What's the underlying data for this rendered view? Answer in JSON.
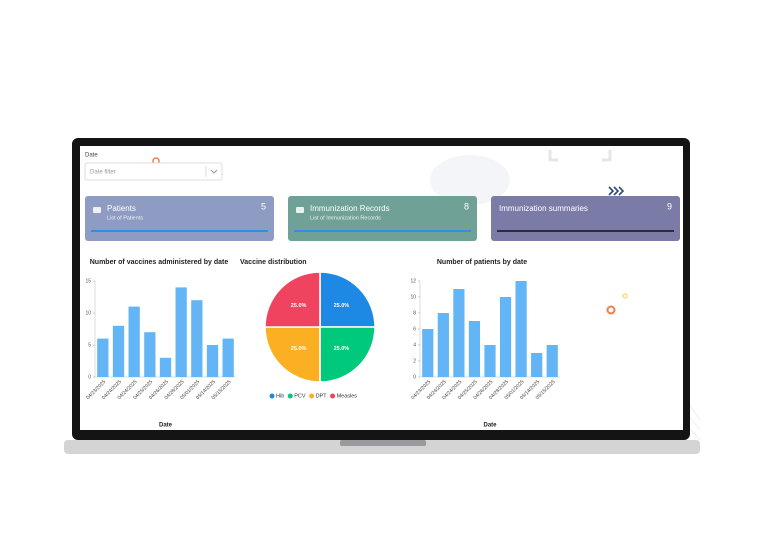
{
  "filter": {
    "label": "Date",
    "placeholder": "Date filter"
  },
  "cards": [
    {
      "title": "Patients",
      "subtitle": "List of Patients",
      "count": 5,
      "color": "#8e9bc2",
      "accent": "#2f8fe0"
    },
    {
      "title": "Immunization Records",
      "subtitle": "List of Immunization Records",
      "count": 8,
      "color": "#6fa196",
      "accent": "#2f8fe0"
    },
    {
      "title": "Immunization summaries",
      "count": 9,
      "color": "#7b7ba8",
      "accent": "#2c2c3a"
    }
  ],
  "charts": [
    {
      "type": "bar",
      "title": "Number of vaccines administered by date",
      "x_label": "Date",
      "categories": [
        "04/23/2025",
        "04/24/2025",
        "04/24/2025",
        "04/25/2025",
        "04/26/2025",
        "04/28/2025",
        "05/01/2025",
        "05/14/2025",
        "05/15/2025"
      ],
      "values": [
        6,
        8,
        11,
        7,
        3,
        14,
        12,
        5,
        6
      ],
      "color": "#64b5f6",
      "ylim": [
        0,
        15
      ],
      "yticks": [
        0,
        5,
        10,
        15
      ]
    },
    {
      "type": "pie",
      "title": "Vaccine distribution",
      "categories": [
        "Hib",
        "PCV",
        "DPT",
        "Measles"
      ],
      "values": [
        25,
        25,
        25,
        25
      ],
      "value_labels": [
        "25.0%",
        "25.0%",
        "25.0%",
        "25.0%"
      ],
      "colors": [
        "#1e88e5",
        "#00c97b",
        "#fbb024",
        "#f0435f"
      ]
    },
    {
      "type": "bar",
      "title": "Number of patients by date",
      "x_label": "Date",
      "categories": [
        "04/23/2025",
        "04/24/2025",
        "04/24/2025",
        "04/25/2025",
        "04/26/2025",
        "04/28/2025",
        "05/01/2025",
        "05/14/2025",
        "05/15/2025"
      ],
      "values": [
        6,
        8,
        11,
        7,
        4,
        10,
        12,
        3,
        4
      ],
      "color": "#64b5f6",
      "ylim": [
        0,
        12
      ],
      "yticks": [
        0,
        2,
        4,
        6,
        8,
        10,
        12
      ]
    }
  ]
}
